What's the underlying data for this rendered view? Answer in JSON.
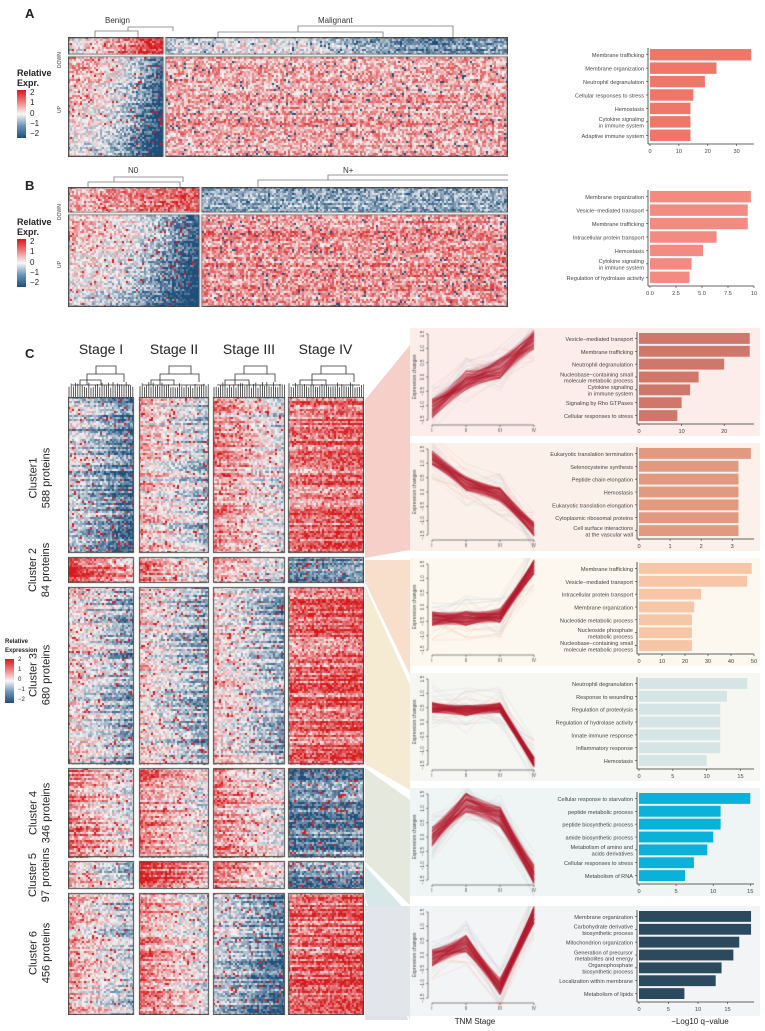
{
  "panels": {
    "A": {
      "letter": "A",
      "groups": [
        "Benign",
        "Malignant"
      ],
      "row_groups": [
        "DOWN",
        "UP"
      ],
      "legend": {
        "title_line1": "Relative",
        "title_line2": "Expr.",
        "ticks": [
          "2",
          "1",
          "0",
          "−1",
          "−2"
        ]
      }
    },
    "B": {
      "letter": "B",
      "groups": [
        "N0",
        "N+"
      ],
      "row_groups": [
        "DOWN",
        "UP"
      ],
      "legend": {
        "title_line1": "Relative",
        "title_line2": "Expr.",
        "ticks": [
          "2",
          "1",
          "0",
          "−1",
          "−2"
        ]
      }
    },
    "C": {
      "letter": "C",
      "stages": [
        "Stage I",
        "Stage II",
        "Stage III",
        "Stage IV"
      ],
      "legend": {
        "title_line1": "Relative",
        "title_line2": "Expression",
        "ticks": [
          "2",
          "1",
          "0",
          "−1",
          "−2"
        ]
      },
      "clusters": [
        {
          "name": "Cluster1",
          "count": "588 proteins"
        },
        {
          "name": "Cluster 2",
          "count": "84 proteins"
        },
        {
          "name": "Cluster 3",
          "count": "680 proteins"
        },
        {
          "name": "Cluster 4",
          "count": "346 proteins"
        },
        {
          "name": "Cluster 5",
          "count": "97 proteins"
        },
        {
          "name": "Cluster 6",
          "count": "456 proteins"
        }
      ],
      "line_ylabel": "Expression changes",
      "line_xlabel": "TNM Stage",
      "bar_xlabel": "−Log10 q−value"
    }
  },
  "colors": {
    "heat_high": "#d7191c",
    "heat_mid": "#f7f7f7",
    "heat_low": "#1f4e79",
    "line_main": "#b2182b"
  },
  "chart_data": [
    {
      "type": "bar",
      "id": "A-enrichment",
      "orientation": "horizontal",
      "color": "#f0766a",
      "categories": [
        "Membrane trafficking",
        "Membrane organization",
        "Neutrophil degranulation",
        "Cellular responses to stress",
        "Hemostasis",
        "Cytokine signaling in immune system",
        "Adaptive immune system"
      ],
      "values": [
        35,
        23,
        19,
        15,
        14,
        14,
        14
      ],
      "xlim": [
        0,
        36
      ],
      "xticks": [
        "0",
        "10",
        "20",
        "30"
      ],
      "xtick_values": [
        0,
        10,
        20,
        30
      ]
    },
    {
      "type": "bar",
      "id": "B-enrichment",
      "orientation": "horizontal",
      "color": "#f38b82",
      "categories": [
        "Membrane organization",
        "Vesicle−mediated transport",
        "Membrane trafficking",
        "Intracellular protein transport",
        "Hemostasis",
        "Cytokine signaling in immune system",
        "Regulation of hydrolase activity"
      ],
      "values": [
        9.7,
        9.4,
        9.4,
        6.4,
        5.1,
        4.0,
        3.8
      ],
      "xlim": [
        0,
        10
      ],
      "xticks": [
        "0.0",
        "2.5",
        "5.0",
        "7.5",
        "10"
      ],
      "xtick_values": [
        0,
        2.5,
        5,
        7.5,
        10
      ]
    },
    {
      "type": "line",
      "id": "C1-trend",
      "cluster": "Cluster1",
      "x": [
        "I",
        "II",
        "III",
        "IV"
      ],
      "yticks": [
        "−1.5",
        "−1.0",
        "−0.5",
        "0.0",
        "0.5",
        "1.0",
        "1.5"
      ],
      "ylim": [
        -1.5,
        1.5
      ],
      "mean": [
        -1.1,
        -0.1,
        0.3,
        1.3
      ],
      "spread": 0.35,
      "band_color": "#fcecea"
    },
    {
      "type": "bar",
      "id": "C1-enrichment",
      "orientation": "horizontal",
      "color": "#d0776c",
      "categories": [
        "Vesicle−mediated transport",
        "Membrane trafficking",
        "Neutrophil degranulation",
        "Nucleobase−containing small molecule metabolic process",
        "Cytokine signaling in immune system",
        "Signaling by Rho GTPases",
        "Cellular responses to stress"
      ],
      "values": [
        26,
        26,
        20,
        14,
        12,
        10,
        9
      ],
      "xlim": [
        0,
        27
      ],
      "xticks": [
        "0",
        "10",
        "20"
      ],
      "xtick_values": [
        0,
        10,
        20
      ]
    },
    {
      "type": "line",
      "id": "C2-trend",
      "cluster": "Cluster 2",
      "x": [
        "I",
        "II",
        "III",
        "IV"
      ],
      "yticks": [
        "−1.5",
        "−1.0",
        "−0.5",
        "0.0",
        "0.5",
        "1.0",
        "1.5"
      ],
      "ylim": [
        -1.5,
        1.5
      ],
      "mean": [
        1.2,
        0.3,
        -0.1,
        -1.3
      ],
      "spread": 0.25,
      "band_color": "#fcefe6"
    },
    {
      "type": "bar",
      "id": "C2-enrichment",
      "orientation": "horizontal",
      "color": "#e19a80",
      "categories": [
        "Eukaryotic translation termination",
        "Selenocysteine synthesis",
        "Peptide chain elongation",
        "Hemostasis",
        "Eukaryotic translation elongation",
        "Cytoplasmic ribosomal proteins",
        "Cell surface interactions at the vascular wall"
      ],
      "values": [
        3.6,
        3.2,
        3.2,
        3.2,
        3.2,
        3.2,
        3.2
      ],
      "xlim": [
        0,
        3.7
      ],
      "xticks": [
        "0",
        "1",
        "2",
        "3"
      ],
      "xtick_values": [
        0,
        1,
        2,
        3
      ]
    },
    {
      "type": "line",
      "id": "C3-trend",
      "cluster": "Cluster 3",
      "x": [
        "I",
        "II",
        "III",
        "IV"
      ],
      "yticks": [
        "−1.5",
        "−1.0",
        "−0.5",
        "0.0",
        "0.5",
        "1.0",
        "1.5"
      ],
      "ylim": [
        -1.5,
        1.5
      ],
      "mean": [
        -0.4,
        -0.4,
        -0.3,
        1.4
      ],
      "spread": 0.25,
      "band_color": "#fcf7ec"
    },
    {
      "type": "bar",
      "id": "C3-enrichment",
      "orientation": "horizontal",
      "color": "#f7c6a6",
      "categories": [
        "Membrane trafficking",
        "Vesicle−mediated transport",
        "Intracellular protein transport",
        "Membrane organization",
        "Nucleotide metabolic process",
        "Nucleoside phosphate metabolic process",
        "Nucleobase−containing small molecule metabolic process"
      ],
      "values": [
        49,
        47,
        27,
        24,
        23,
        23,
        23
      ],
      "xlim": [
        0,
        50
      ],
      "xticks": [
        "0",
        "10",
        "20",
        "30",
        "40",
        "50"
      ],
      "xtick_values": [
        0,
        10,
        20,
        30,
        40,
        50
      ]
    },
    {
      "type": "line",
      "id": "C4-trend",
      "cluster": "Cluster 4",
      "x": [
        "I",
        "II",
        "III",
        "IV"
      ],
      "yticks": [
        "−1.5",
        "−1.0",
        "−0.5",
        "0.0",
        "0.5",
        "1.0",
        "1.5"
      ],
      "ylim": [
        -1.5,
        1.5
      ],
      "mean": [
        0.5,
        0.4,
        0.5,
        -1.4
      ],
      "spread": 0.18,
      "band_color": "#f5f6f1"
    },
    {
      "type": "bar",
      "id": "C4-enrichment",
      "orientation": "horizontal",
      "color": "#d5e4e4",
      "categories": [
        "Neutrophil degranulation",
        "Response to wounding",
        "Regulation of proteolysis",
        "Regulation of hydrolase activity",
        "Innate immune response",
        "Inflammatory response",
        "Hemostasis"
      ],
      "values": [
        16,
        13,
        12,
        12,
        12,
        12,
        10
      ],
      "xlim": [
        0,
        17
      ],
      "xticks": [
        "0",
        "5",
        "10",
        "15"
      ],
      "xtick_values": [
        0,
        5,
        10,
        15
      ]
    },
    {
      "type": "line",
      "id": "C5-trend",
      "cluster": "Cluster 5",
      "x": [
        "I",
        "II",
        "III",
        "IV"
      ],
      "yticks": [
        "−1.5",
        "−1.0",
        "−0.5",
        "0.0",
        "0.5",
        "1.0",
        "1.5"
      ],
      "ylim": [
        -1.5,
        1.5
      ],
      "mean": [
        0.0,
        1.2,
        0.7,
        -1.3
      ],
      "spread": 0.35,
      "band_color": "#eef5f4"
    },
    {
      "type": "bar",
      "id": "C5-enrichment",
      "orientation": "horizontal",
      "color": "#0ab1d8",
      "categories": [
        "Cellular response to starvation",
        "peptide metabolic process",
        "peptide biosynthetic process",
        "amide biosynthetic process",
        "Metabolism of amino acids and derivatives",
        "Cellular responses to stress",
        "Metabolism of RNA"
      ],
      "values": [
        15,
        11,
        11,
        10,
        9.2,
        7.4,
        6.2
      ],
      "xlim": [
        0,
        15.5
      ],
      "xticks": [
        "0",
        "5",
        "10",
        "15"
      ],
      "xtick_values": [
        0,
        5,
        10,
        15
      ]
    },
    {
      "type": "line",
      "id": "C6-trend",
      "cluster": "Cluster 6",
      "x": [
        "I",
        "II",
        "III",
        "IV"
      ],
      "yticks": [
        "−1.5",
        "−1.0",
        "−0.5",
        "0.0",
        "0.5",
        "1.0",
        "1.5"
      ],
      "ylim": [
        -1.5,
        1.5
      ],
      "mean": [
        -0.1,
        0.4,
        -1.1,
        1.4
      ],
      "spread": 0.3,
      "band_color": "#f3f4f6"
    },
    {
      "type": "bar",
      "id": "C6-enrichment",
      "orientation": "horizontal",
      "color": "#2b4a5e",
      "categories": [
        "Membrane organization",
        "Carbohydrate derivative biosynthetic process",
        "Mitochondrion organization",
        "Generation of precursor metabolites and energy",
        "Organophosphate biosynthetic process",
        "Localization within membrane",
        "Metabolism of lipids"
      ],
      "values": [
        19,
        19,
        17,
        16,
        14,
        13,
        7.7
      ],
      "xlim": [
        0,
        19.5
      ],
      "xticks": [
        "0",
        "5",
        "10",
        "15"
      ],
      "xtick_values": [
        0,
        5,
        10,
        15
      ]
    }
  ]
}
